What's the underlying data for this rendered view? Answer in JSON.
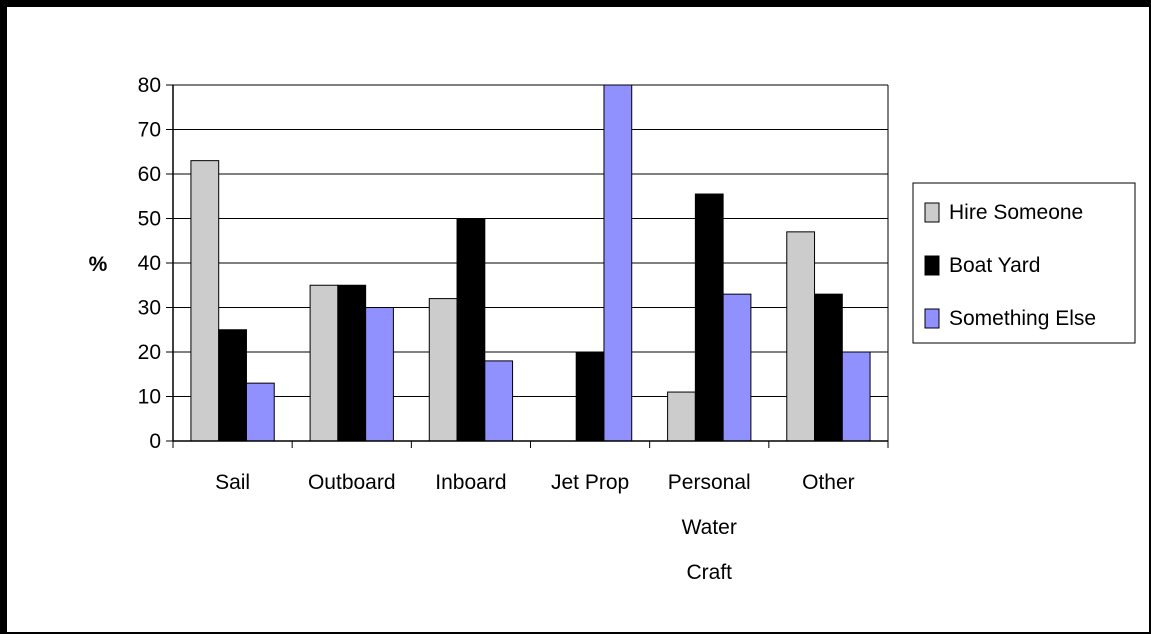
{
  "chart_data": {
    "type": "bar",
    "title": "",
    "xlabel": "",
    "ylabel": "%",
    "ylim": [
      0,
      80
    ],
    "yticks": [
      0,
      10,
      20,
      30,
      40,
      50,
      60,
      70,
      80
    ],
    "grid": true,
    "legend_position": "right",
    "categories": [
      [
        "Sail"
      ],
      [
        "Outboard"
      ],
      [
        "Inboard"
      ],
      [
        "Jet Prop"
      ],
      [
        "Personal",
        "Water",
        "Craft"
      ],
      [
        "Other"
      ]
    ],
    "series": [
      {
        "name": "Hire Someone",
        "color": "#cccccc",
        "values": [
          63,
          35,
          32,
          0,
          11,
          47
        ]
      },
      {
        "name": "Boat Yard",
        "color": "#000000",
        "values": [
          25,
          35,
          50,
          20,
          55.5,
          33
        ]
      },
      {
        "name": "Something Else",
        "color": "#9090ff",
        "values": [
          13,
          30,
          18,
          80,
          33,
          20
        ]
      }
    ]
  }
}
